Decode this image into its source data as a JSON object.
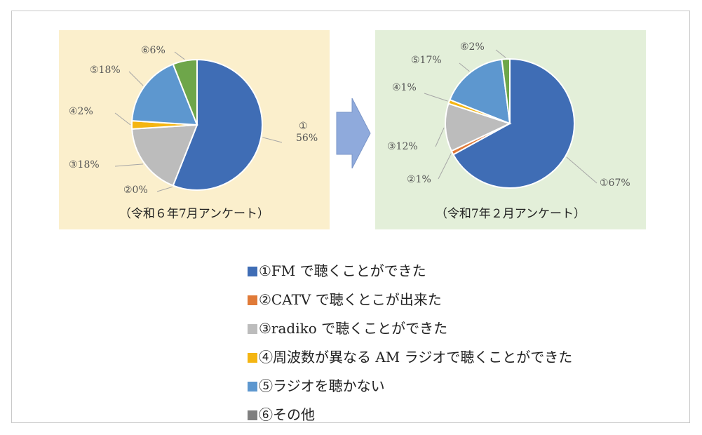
{
  "colors": {
    "fm": "#3f6db5",
    "catv": "#e07a38",
    "radiko": "#bcbcbc",
    "am": "#f4b512",
    "none": "#5d97cf",
    "other": "#6ea64a",
    "other_legend": "#7f7f7f",
    "panel_left_bg": "#fbefcc",
    "panel_right_bg": "#e3efd9",
    "arrow": "#8faadc"
  },
  "chart_data": [
    {
      "type": "pie",
      "title": "（令和６年7月アンケート）",
      "categories": [
        "①",
        "②",
        "③",
        "④",
        "⑤",
        "⑥"
      ],
      "values": [
        56,
        0,
        18,
        2,
        18,
        6
      ],
      "labels": [
        "①\n56%",
        "②0%",
        "③18%",
        "④2%",
        "⑤18%",
        "⑥6%"
      ]
    },
    {
      "type": "pie",
      "title": "（令和7年２月アンケート）",
      "categories": [
        "①",
        "②",
        "③",
        "④",
        "⑤",
        "⑥"
      ],
      "values": [
        67,
        1,
        12,
        1,
        17,
        2
      ],
      "labels": [
        "①67%",
        "②1%",
        "③12%",
        "④1%",
        "⑤17%",
        "⑥2%"
      ]
    }
  ],
  "legend": [
    {
      "text": "①FM で聴くことができた",
      "color": "#3f6db5"
    },
    {
      "text": "②CATV で聴くとこが出来た",
      "color": "#e07a38"
    },
    {
      "text": "③radiko で聴くことができた",
      "color": "#bcbcbc"
    },
    {
      "text": "④周波数が異なる AM ラジオで聴くことができた",
      "color": "#f4b512"
    },
    {
      "text": "⑤ラジオを聴かない",
      "color": "#5d97cf"
    },
    {
      "text": "⑥その他",
      "color": "#7f7f7f"
    }
  ]
}
